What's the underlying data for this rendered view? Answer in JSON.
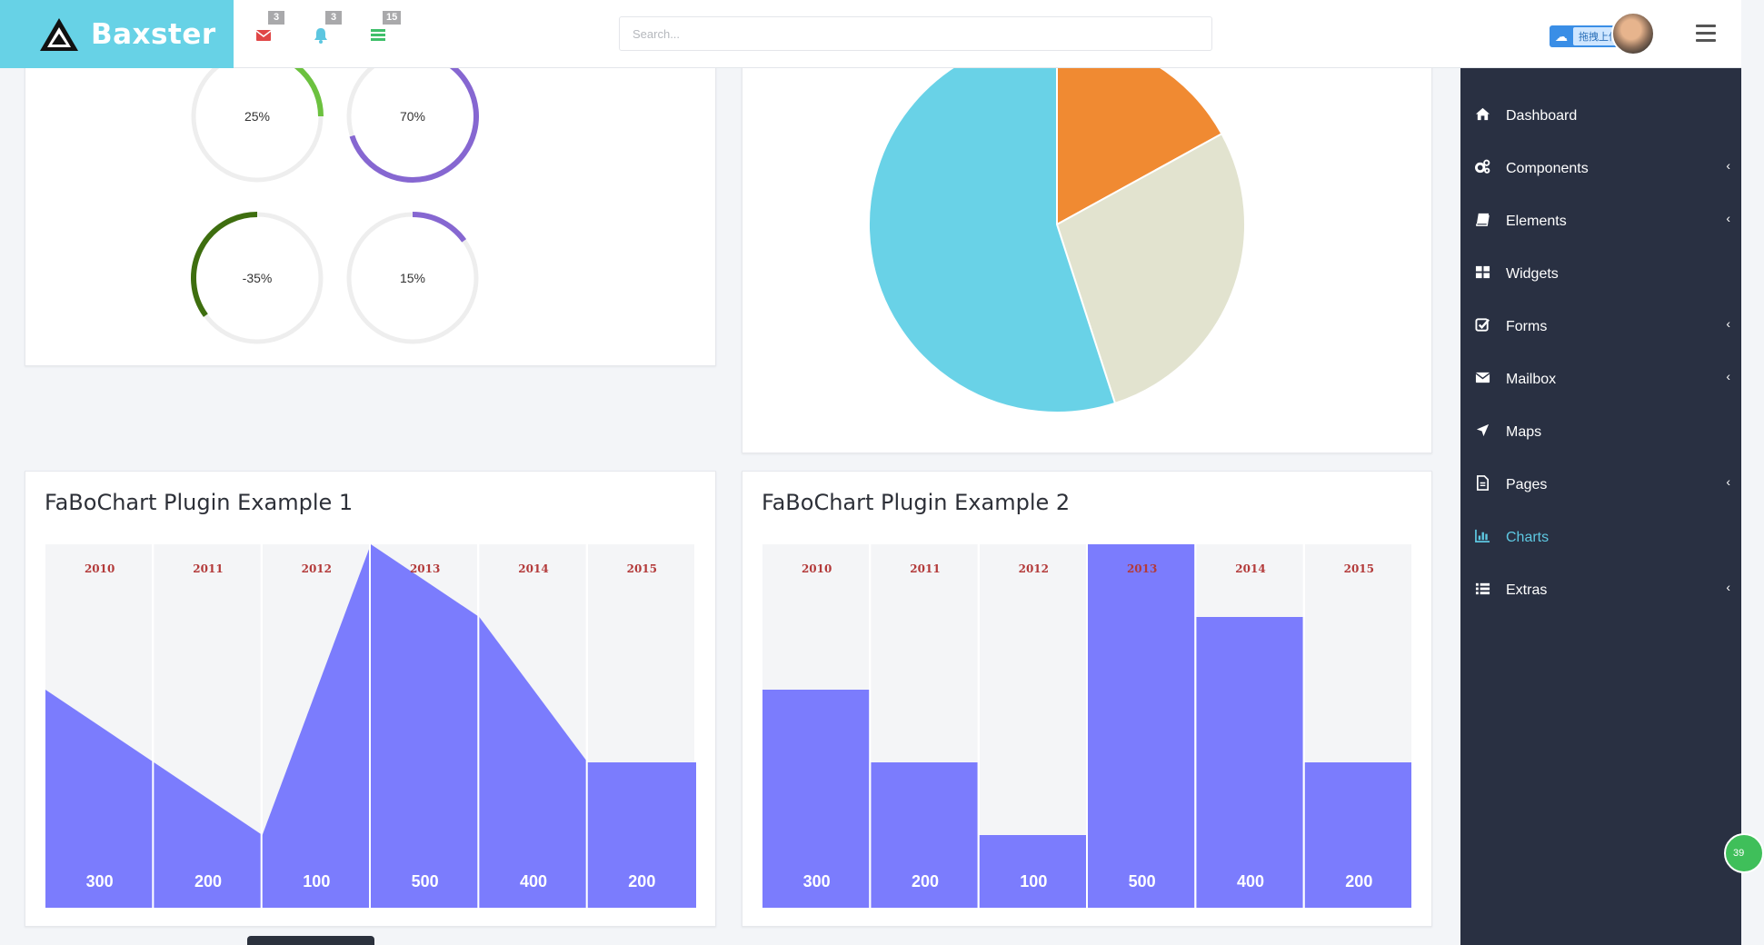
{
  "brand": {
    "name": "Baxster"
  },
  "top": {
    "badges": [
      {
        "icon": "envelope-icon",
        "count": "3",
        "color": "#e04646"
      },
      {
        "icon": "bell-icon",
        "count": "3",
        "color": "#5cc6e0"
      },
      {
        "icon": "list-icon",
        "count": "15",
        "color": "#3fbf6a"
      }
    ],
    "search_placeholder": "Search...",
    "upload_label": "拖拽上传"
  },
  "sidebar": {
    "items": [
      {
        "label": "Dashboard",
        "icon": "home-icon",
        "has_sub": false
      },
      {
        "label": "Components",
        "icon": "cogs-icon",
        "has_sub": true
      },
      {
        "label": "Elements",
        "icon": "book-icon",
        "has_sub": true
      },
      {
        "label": "Widgets",
        "icon": "grid-icon",
        "has_sub": false
      },
      {
        "label": "Forms",
        "icon": "check-square-icon",
        "has_sub": true
      },
      {
        "label": "Mailbox",
        "icon": "envelope-icon",
        "has_sub": true
      },
      {
        "label": "Maps",
        "icon": "location-arrow-icon",
        "has_sub": false
      },
      {
        "label": "Pages",
        "icon": "file-icon",
        "has_sub": true
      },
      {
        "label": "Charts",
        "icon": "bar-chart-icon",
        "has_sub": false,
        "active": true
      },
      {
        "label": "Extras",
        "icon": "list-icon",
        "has_sub": true
      }
    ],
    "chevron": "‹"
  },
  "gauges": [
    {
      "label": "25%",
      "value": 25,
      "color": "#6cc13f"
    },
    {
      "label": "70%",
      "value": 70,
      "color": "#8667d1"
    },
    {
      "label": "-35%",
      "value": -35,
      "color": "#3e6e0f"
    },
    {
      "label": "15%",
      "value": 15,
      "color": "#8667d1"
    }
  ],
  "chart_data": [
    {
      "type": "pie",
      "values": [
        17,
        28,
        55
      ],
      "colors": [
        "#f08a32",
        "#e2e3cf",
        "#69d2e7"
      ]
    },
    {
      "type": "area",
      "title": "FaBoChart Plugin Example 1",
      "categories": [
        "2010",
        "2011",
        "2012",
        "2013",
        "2014",
        "2015"
      ],
      "values": [
        300,
        200,
        100,
        500,
        400,
        200
      ],
      "ylim": [
        0,
        500
      ],
      "color": "#7b7cfd"
    },
    {
      "type": "bar",
      "title": "FaBoChart Plugin Example 2",
      "categories": [
        "2010",
        "2011",
        "2012",
        "2013",
        "2014",
        "2015"
      ],
      "values": [
        300,
        200,
        100,
        500,
        400,
        200
      ],
      "ylim": [
        0,
        500
      ],
      "color": "#7b7cfd"
    }
  ],
  "floating_badge": "39"
}
